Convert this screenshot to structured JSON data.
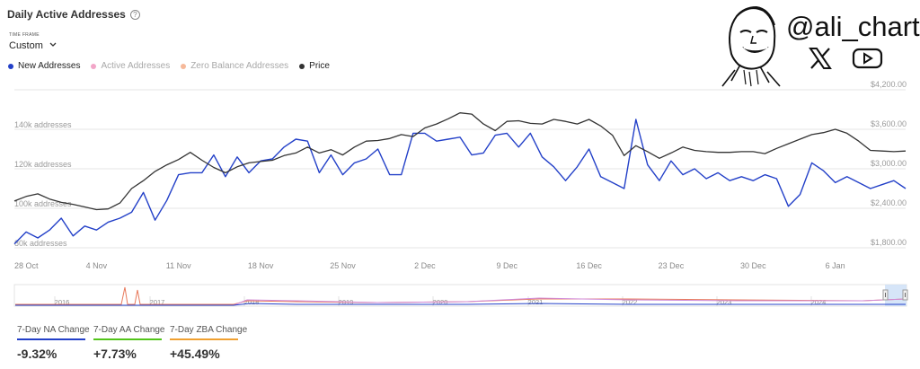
{
  "header": {
    "title": "Daily Active Addresses",
    "help_icon": "help-circle-icon"
  },
  "timeframe": {
    "label": "TIME FRAME",
    "value": "Custom",
    "icon": "chevron-down-icon"
  },
  "legend": [
    {
      "label": "New Addresses",
      "color": "#2340c8",
      "active": true
    },
    {
      "label": "Active Addresses",
      "color": "#f2a6c8",
      "active": false
    },
    {
      "label": "Zero Balance Addresses",
      "color": "#f6b99a",
      "active": false
    },
    {
      "label": "Price",
      "color": "#333333",
      "active": true
    }
  ],
  "brand": {
    "handle": "@ali_charts",
    "icons": [
      "face-drawing-icon",
      "x-logo-icon",
      "youtube-icon"
    ]
  },
  "chart_data": {
    "type": "line",
    "x_labels": [
      "28 Oct",
      "4 Nov",
      "11 Nov",
      "18 Nov",
      "25 Nov",
      "2 Dec",
      "9 Dec",
      "16 Dec",
      "23 Dec",
      "30 Dec",
      "6 Jan"
    ],
    "y_left_ticks": [
      "80k addresses",
      "100k addresses",
      "120k addresses",
      "140k addresses"
    ],
    "y_right_ticks": [
      "$1,800.00",
      "$2,400.00",
      "$3,000.00",
      "$3,600.00",
      "$4,200.00"
    ],
    "ylim_left": [
      80000,
      160000
    ],
    "ylim_right": [
      1800,
      4200
    ],
    "grid": true,
    "series": [
      {
        "name": "New Addresses",
        "axis": "left",
        "color": "#2340c8",
        "values": [
          82000,
          88000,
          85000,
          89000,
          95000,
          86000,
          91000,
          89000,
          93000,
          95000,
          98000,
          108000,
          94000,
          104000,
          117000,
          118000,
          118000,
          127000,
          116000,
          126000,
          118000,
          124000,
          125000,
          131000,
          135000,
          134000,
          118000,
          127000,
          117000,
          123000,
          125000,
          130000,
          117000,
          117000,
          138000,
          138000,
          134000,
          135000,
          136000,
          127000,
          128000,
          137000,
          138000,
          131000,
          138000,
          126000,
          121000,
          114000,
          121000,
          130000,
          116000,
          113000,
          110000,
          145000,
          122000,
          114000,
          124000,
          117000,
          120000,
          115000,
          118000,
          114000,
          116000,
          114000,
          117000,
          115000,
          101000,
          107000,
          123000,
          119000,
          113000,
          116000,
          113000,
          110000,
          112000,
          114000,
          110000
        ]
      },
      {
        "name": "Price",
        "axis": "right",
        "color": "#333333",
        "values": [
          2510,
          2580,
          2620,
          2540,
          2490,
          2460,
          2420,
          2380,
          2390,
          2480,
          2700,
          2820,
          2960,
          3060,
          3140,
          3250,
          3130,
          3020,
          2940,
          3030,
          3090,
          3110,
          3130,
          3200,
          3240,
          3330,
          3240,
          3290,
          3210,
          3330,
          3420,
          3430,
          3460,
          3520,
          3490,
          3620,
          3680,
          3760,
          3850,
          3830,
          3680,
          3580,
          3720,
          3730,
          3690,
          3680,
          3750,
          3720,
          3680,
          3750,
          3650,
          3510,
          3200,
          3350,
          3260,
          3160,
          3240,
          3330,
          3280,
          3260,
          3250,
          3250,
          3260,
          3260,
          3230,
          3310,
          3380,
          3450,
          3520,
          3550,
          3600,
          3540,
          3420,
          3280,
          3270,
          3260,
          3270
        ]
      }
    ]
  },
  "navigator": {
    "years": [
      "2016",
      "2017",
      "2018",
      "2019",
      "2020",
      "2021",
      "2022",
      "2023",
      "2024"
    ],
    "handle_icon": "range-handle-icon"
  },
  "stats": [
    {
      "label": "7-Day NA Change",
      "value": "-9.32%",
      "color": "#2340c8"
    },
    {
      "label": "7-Day AA Change",
      "value": "+7.73%",
      "color": "#52c41a"
    },
    {
      "label": "7-Day ZBA Change",
      "value": "+45.49%",
      "color": "#f0a030"
    }
  ]
}
